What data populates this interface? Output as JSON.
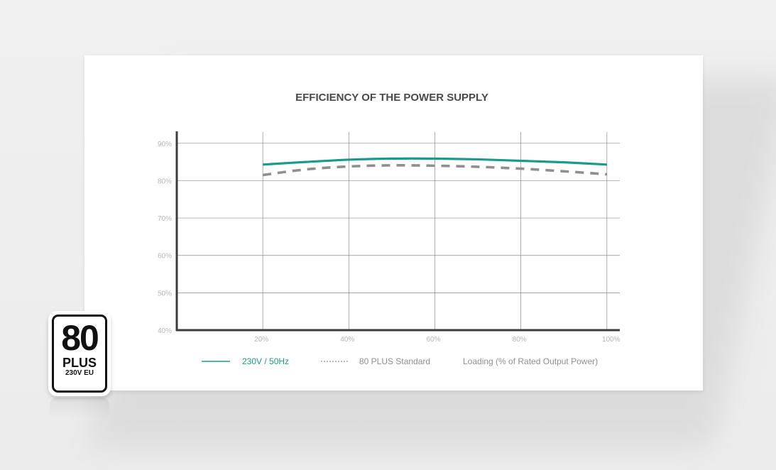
{
  "chart_data": {
    "type": "line",
    "title": "EFFICIENCY OF THE POWER SUPPLY",
    "x": [
      20,
      30,
      40,
      50,
      60,
      70,
      80,
      90,
      100
    ],
    "x_tick_labels": [
      "20%",
      "40%",
      "60%",
      "80%",
      "100%"
    ],
    "x_ticks": [
      20,
      40,
      60,
      80,
      100
    ],
    "xlim": [
      0,
      103
    ],
    "y_tick_labels": [
      "40%",
      "50%",
      "60%",
      "70%",
      "80%",
      "90%"
    ],
    "y_ticks": [
      40,
      50,
      60,
      70,
      80,
      90
    ],
    "ylim": [
      40,
      93
    ],
    "xlabel": "Loading (% of Rated Output Power)",
    "ylabel": "",
    "grid": true,
    "legend_position": "bottom",
    "series": [
      {
        "name": "230V / 50Hz",
        "style": "solid",
        "color": "#1a9a8e",
        "values": [
          84.3,
          85.0,
          85.6,
          85.9,
          85.9,
          85.7,
          85.3,
          84.9,
          84.3
        ]
      },
      {
        "name": "80 PLUS Standard",
        "style": "dashed",
        "color": "#8f8f8f",
        "values": [
          81.5,
          83.0,
          83.8,
          84.1,
          84.0,
          83.7,
          83.2,
          82.5,
          81.7
        ]
      }
    ]
  },
  "legend": {
    "series1_label": "230V / 50Hz",
    "series2_label": "80 PLUS Standard",
    "xlabel": "Loading (% of Rated Output Power)",
    "series1_color": "#1a9a8e",
    "series2_color": "#8f8f8f",
    "xlabel_color": "#8f8f8f"
  },
  "badge": {
    "number": "80",
    "plus": "PLUS",
    "subtitle": "230V EU",
    "icon": "80-plus-certification-badge"
  }
}
